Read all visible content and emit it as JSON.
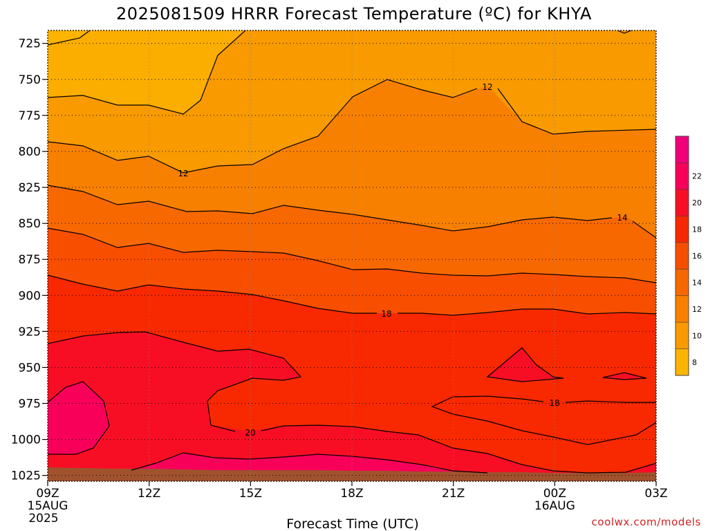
{
  "chart_data": {
    "type": "heatmap",
    "title": "2025081509 HRRR Forecast Temperature (ºC) for KHYA",
    "xlabel": "Forecast Time (UTC)",
    "ylabel": "",
    "y_ticks": [
      725,
      750,
      775,
      800,
      825,
      850,
      875,
      900,
      925,
      950,
      975,
      1000,
      1025
    ],
    "x_ticks": [
      {
        "label": "09Z",
        "sub": "15AUG",
        "sub2": "2025"
      },
      {
        "label": "12Z",
        "sub": "",
        "sub2": ""
      },
      {
        "label": "15Z",
        "sub": "",
        "sub2": ""
      },
      {
        "label": "18Z",
        "sub": "",
        "sub2": ""
      },
      {
        "label": "21Z",
        "sub": "",
        "sub2": ""
      },
      {
        "label": "00Z",
        "sub": "16AUG",
        "sub2": ""
      },
      {
        "label": "03Z",
        "sub": "",
        "sub2": ""
      }
    ],
    "colorbar_labels": [
      "8",
      "10",
      "12",
      "14",
      "16",
      "18",
      "20",
      "22"
    ],
    "colorbar_colors": [
      "#fbb400",
      "#f89a00",
      "#f88000",
      "#f86800",
      "#f84e00",
      "#f82800",
      "#f80e24",
      "#f8005a",
      "#f0007a"
    ],
    "contour_labels": [
      {
        "text": "12"
      },
      {
        "text": "12"
      },
      {
        "text": "14"
      },
      {
        "text": "18"
      },
      {
        "text": "18"
      },
      {
        "text": "20"
      }
    ],
    "credit": "coolwx.com/models",
    "grid": true
  }
}
